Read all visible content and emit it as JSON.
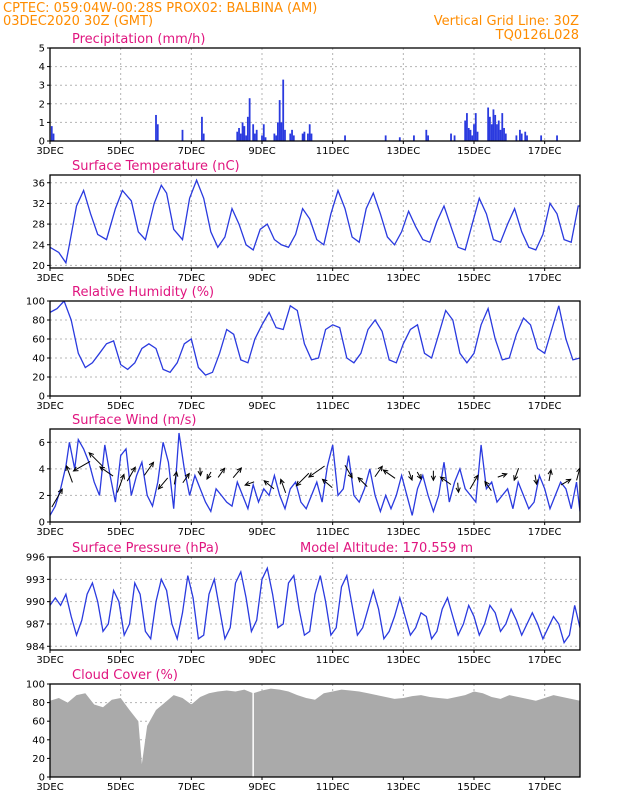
{
  "header": {
    "line1_left": "CPTEC:   059:04W-00:28S   PROX02: BALBINA (AM)",
    "line2_left": "03DEC2020 30Z (GMT)",
    "line2_right": "Vertical Grid Line: 30Z",
    "line3_right": "TQ0126L028"
  },
  "colors": {
    "header": "#ff8c00",
    "panel_title": "#e0157f",
    "series": "#2a3adf",
    "cloud_fill": "#aaaaaa",
    "grid": "#b4b4b4"
  },
  "x_axis": {
    "start_day": 3,
    "end_day": 18,
    "tick_days": [
      3,
      5,
      7,
      9,
      11,
      13,
      15,
      17
    ],
    "tick_labels": [
      "3DEC",
      "5DEC",
      "7DEC",
      "9DEC",
      "11DEC",
      "13DEC",
      "15DEC",
      "17DEC"
    ],
    "vertical_grid_day": 8.75
  },
  "chart_data": [
    {
      "type": "bar",
      "title": "Precipitation (mm/h)",
      "ylim": [
        0,
        5
      ],
      "yticks": [
        0,
        1,
        2,
        3,
        4,
        5
      ],
      "ytick_labels": [
        "0",
        "1",
        "2",
        "3",
        "4",
        "5"
      ],
      "x": [
        3.05,
        3.1,
        6.0,
        6.05,
        6.75,
        7.3,
        7.35,
        8.3,
        8.35,
        8.4,
        8.45,
        8.5,
        8.55,
        8.6,
        8.65,
        8.75,
        8.8,
        8.85,
        9.0,
        9.05,
        9.1,
        9.35,
        9.4,
        9.45,
        9.5,
        9.55,
        9.6,
        9.65,
        9.8,
        9.85,
        9.9,
        10.15,
        10.2,
        10.3,
        10.35,
        10.4,
        11.35,
        12.5,
        12.9,
        13.3,
        13.65,
        13.7,
        14.35,
        14.45,
        14.75,
        14.8,
        14.85,
        14.9,
        14.95,
        15.0,
        15.05,
        15.1,
        15.4,
        15.45,
        15.5,
        15.55,
        15.6,
        15.65,
        15.7,
        15.75,
        15.8,
        15.85,
        15.9,
        16.2,
        16.3,
        16.35,
        16.45,
        16.5,
        16.9,
        17.35
      ],
      "values": [
        0.8,
        0.4,
        1.4,
        0.9,
        0.6,
        1.3,
        0.4,
        0.5,
        0.7,
        0.4,
        1.0,
        0.8,
        0.3,
        1.3,
        2.3,
        0.9,
        0.4,
        0.6,
        0.3,
        0.9,
        0.2,
        0.4,
        0.3,
        1.0,
        2.2,
        1.0,
        3.3,
        0.6,
        0.4,
        0.6,
        0.3,
        0.4,
        0.5,
        0.4,
        0.9,
        0.4,
        0.3,
        0.3,
        0.2,
        0.3,
        0.6,
        0.3,
        0.4,
        0.3,
        1.1,
        1.5,
        0.7,
        0.6,
        0.3,
        0.9,
        1.5,
        0.5,
        1.8,
        1.3,
        0.9,
        1.7,
        1.4,
        0.9,
        1.1,
        0.6,
        1.5,
        0.7,
        0.4,
        0.3,
        0.6,
        0.4,
        0.5,
        0.3,
        0.3,
        0.3
      ]
    },
    {
      "type": "line",
      "title": "Surface Temperature (nC)",
      "ylim": [
        19.5,
        37.5
      ],
      "yticks": [
        20,
        24,
        28,
        32,
        36
      ],
      "ytick_labels": [
        "20",
        "24",
        "28",
        "32",
        "36"
      ],
      "x": [
        3.0,
        3.25,
        3.45,
        3.55,
        3.75,
        3.95,
        4.15,
        4.35,
        4.6,
        4.85,
        5.05,
        5.3,
        5.5,
        5.7,
        5.95,
        6.15,
        6.3,
        6.5,
        6.75,
        6.95,
        7.15,
        7.35,
        7.55,
        7.75,
        7.95,
        8.15,
        8.35,
        8.55,
        8.75,
        8.95,
        9.15,
        9.35,
        9.55,
        9.75,
        9.95,
        10.15,
        10.35,
        10.55,
        10.75,
        10.95,
        11.15,
        11.35,
        11.55,
        11.75,
        11.95,
        12.15,
        12.35,
        12.55,
        12.75,
        12.95,
        13.15,
        13.35,
        13.55,
        13.75,
        13.95,
        14.15,
        14.35,
        14.55,
        14.75,
        14.95,
        15.15,
        15.35,
        15.55,
        15.75,
        15.95,
        16.15,
        16.35,
        16.55,
        16.75,
        16.95,
        17.15,
        17.35,
        17.55,
        17.75,
        17.95,
        18.0
      ],
      "values": [
        23.5,
        22.5,
        20.5,
        24.0,
        31.5,
        34.5,
        30.0,
        26.0,
        25.0,
        31.0,
        34.5,
        32.5,
        26.5,
        25.0,
        32.0,
        35.5,
        34.0,
        27.0,
        25.0,
        33.0,
        36.5,
        33.0,
        26.5,
        23.5,
        25.5,
        31.0,
        28.0,
        24.0,
        23.0,
        27.0,
        28.0,
        25.0,
        24.0,
        23.5,
        26.0,
        31.0,
        29.0,
        25.0,
        24.0,
        30.0,
        34.5,
        31.0,
        25.5,
        24.5,
        31.0,
        34.0,
        30.0,
        25.5,
        24.0,
        26.5,
        30.5,
        27.5,
        25.0,
        24.5,
        28.5,
        31.5,
        27.5,
        23.5,
        23.0,
        28.0,
        33.0,
        30.0,
        25.0,
        24.5,
        28.0,
        31.0,
        26.5,
        23.5,
        23.0,
        26.0,
        32.0,
        30.0,
        25.0,
        24.5,
        31.5,
        31.5
      ]
    },
    {
      "type": "line",
      "title": "Relative Humidity (%)",
      "ylim": [
        0,
        100
      ],
      "yticks": [
        0,
        20,
        40,
        60,
        80,
        100
      ],
      "ytick_labels": [
        "0",
        "20",
        "40",
        "60",
        "80",
        "100"
      ],
      "x": [
        3.0,
        3.2,
        3.4,
        3.6,
        3.8,
        4.0,
        4.2,
        4.4,
        4.6,
        4.8,
        5.0,
        5.2,
        5.4,
        5.6,
        5.8,
        6.0,
        6.2,
        6.4,
        6.6,
        6.8,
        7.0,
        7.2,
        7.4,
        7.6,
        7.8,
        8.0,
        8.2,
        8.4,
        8.6,
        8.8,
        9.0,
        9.2,
        9.4,
        9.6,
        9.8,
        10.0,
        10.2,
        10.4,
        10.6,
        10.8,
        11.0,
        11.2,
        11.4,
        11.6,
        11.8,
        12.0,
        12.2,
        12.4,
        12.6,
        12.8,
        13.0,
        13.2,
        13.4,
        13.6,
        13.8,
        14.0,
        14.2,
        14.4,
        14.6,
        14.8,
        15.0,
        15.2,
        15.4,
        15.6,
        15.8,
        16.0,
        16.2,
        16.4,
        16.6,
        16.8,
        17.0,
        17.2,
        17.4,
        17.6,
        17.8,
        18.0
      ],
      "values": [
        88,
        92,
        100,
        80,
        45,
        30,
        35,
        45,
        55,
        58,
        33,
        28,
        35,
        50,
        55,
        50,
        28,
        25,
        35,
        55,
        60,
        30,
        22,
        25,
        45,
        70,
        65,
        38,
        35,
        60,
        75,
        88,
        72,
        70,
        95,
        90,
        55,
        38,
        40,
        70,
        75,
        72,
        40,
        35,
        45,
        70,
        80,
        68,
        38,
        35,
        55,
        70,
        75,
        45,
        40,
        65,
        90,
        80,
        45,
        35,
        45,
        75,
        92,
        60,
        38,
        40,
        65,
        82,
        75,
        50,
        45,
        70,
        95,
        60,
        38,
        40
      ]
    },
    {
      "type": "line",
      "title": "Surface Wind (m/s)",
      "ylim": [
        0,
        7
      ],
      "yticks": [
        0,
        2,
        4,
        6
      ],
      "ytick_labels": [
        "0",
        "2",
        "4",
        "6"
      ],
      "x": [
        3.0,
        3.15,
        3.3,
        3.45,
        3.55,
        3.7,
        3.8,
        3.95,
        4.1,
        4.25,
        4.4,
        4.55,
        4.7,
        4.85,
        5.0,
        5.15,
        5.3,
        5.45,
        5.6,
        5.75,
        5.9,
        6.05,
        6.2,
        6.35,
        6.5,
        6.65,
        6.8,
        6.95,
        7.1,
        7.25,
        7.4,
        7.55,
        7.7,
        7.85,
        8.0,
        8.15,
        8.3,
        8.45,
        8.6,
        8.75,
        8.9,
        9.05,
        9.2,
        9.35,
        9.5,
        9.65,
        9.8,
        9.95,
        10.1,
        10.25,
        10.4,
        10.55,
        10.7,
        10.85,
        11.0,
        11.15,
        11.3,
        11.45,
        11.6,
        11.75,
        11.9,
        12.05,
        12.2,
        12.35,
        12.5,
        12.65,
        12.8,
        12.95,
        13.1,
        13.25,
        13.4,
        13.55,
        13.7,
        13.85,
        14.0,
        14.15,
        14.3,
        14.45,
        14.6,
        14.75,
        14.9,
        15.05,
        15.2,
        15.35,
        15.5,
        15.65,
        15.8,
        15.95,
        16.1,
        16.25,
        16.4,
        16.55,
        16.7,
        16.85,
        17.0,
        17.15,
        17.3,
        17.45,
        17.6,
        17.75,
        17.9,
        18.0
      ],
      "values": [
        0.5,
        1.2,
        2.5,
        4.2,
        6.0,
        4.0,
        6.2,
        5.5,
        4.5,
        3.0,
        2.0,
        5.8,
        3.5,
        1.5,
        5.0,
        5.5,
        2.0,
        3.5,
        4.5,
        2.0,
        1.2,
        3.0,
        6.0,
        4.5,
        1.0,
        6.7,
        4.0,
        2.0,
        3.5,
        2.5,
        1.5,
        0.8,
        2.5,
        2.0,
        1.5,
        1.2,
        3.0,
        2.0,
        1.0,
        2.8,
        1.5,
        2.5,
        2.0,
        3.5,
        2.0,
        1.0,
        2.5,
        3.0,
        1.5,
        1.0,
        2.0,
        3.0,
        1.5,
        4.2,
        5.8,
        2.0,
        2.5,
        5.0,
        2.0,
        1.5,
        2.5,
        4.0,
        2.0,
        0.8,
        2.0,
        1.0,
        2.0,
        3.5,
        2.0,
        0.5,
        2.5,
        3.5,
        2.0,
        0.8,
        2.0,
        4.5,
        1.5,
        3.0,
        4.0,
        2.5,
        2.0,
        1.5,
        5.8,
        2.5,
        3.0,
        1.5,
        2.0,
        2.5,
        1.0,
        3.0,
        2.0,
        1.0,
        1.5,
        3.5,
        2.5,
        1.0,
        2.0,
        3.0,
        2.5,
        1.0,
        3.0,
        0.8
      ]
    },
    {
      "type": "line",
      "title": "Surface Pressure (hPa)",
      "subtitle": "Model Altitude: 170.559 m",
      "ylim": [
        983.5,
        996
      ],
      "yticks": [
        984,
        987,
        990,
        993,
        996
      ],
      "ytick_labels": [
        "984",
        "987",
        "990",
        "993",
        "996"
      ],
      "x": [
        3.0,
        3.15,
        3.3,
        3.45,
        3.6,
        3.75,
        3.9,
        4.05,
        4.2,
        4.35,
        4.5,
        4.65,
        4.8,
        4.95,
        5.1,
        5.25,
        5.4,
        5.55,
        5.7,
        5.85,
        6.0,
        6.15,
        6.3,
        6.45,
        6.6,
        6.75,
        6.9,
        7.05,
        7.2,
        7.35,
        7.5,
        7.65,
        7.8,
        7.95,
        8.1,
        8.25,
        8.4,
        8.55,
        8.7,
        8.85,
        9.0,
        9.15,
        9.3,
        9.45,
        9.6,
        9.75,
        9.9,
        10.05,
        10.2,
        10.35,
        10.5,
        10.65,
        10.8,
        10.95,
        11.1,
        11.25,
        11.4,
        11.55,
        11.7,
        11.85,
        12.0,
        12.15,
        12.3,
        12.45,
        12.6,
        12.75,
        12.9,
        13.05,
        13.2,
        13.35,
        13.5,
        13.65,
        13.8,
        13.95,
        14.1,
        14.25,
        14.4,
        14.55,
        14.7,
        14.85,
        15.0,
        15.15,
        15.3,
        15.45,
        15.6,
        15.75,
        15.9,
        16.05,
        16.2,
        16.35,
        16.5,
        16.65,
        16.8,
        16.95,
        17.1,
        17.25,
        17.4,
        17.55,
        17.7,
        17.85,
        18.0
      ],
      "values": [
        989.5,
        990.5,
        989.5,
        991.0,
        988.0,
        985.5,
        987.5,
        991.0,
        992.5,
        990.0,
        986.0,
        987.0,
        991.5,
        990.0,
        985.5,
        987.0,
        992.5,
        991.0,
        986.0,
        985.0,
        990.0,
        993.0,
        991.5,
        987.0,
        985.0,
        988.5,
        993.5,
        990.5,
        985.0,
        985.5,
        991.0,
        993.0,
        989.0,
        985.0,
        986.5,
        992.5,
        994.0,
        990.5,
        986.0,
        987.5,
        993.0,
        994.5,
        991.0,
        986.5,
        987.0,
        992.5,
        993.5,
        989.0,
        985.5,
        986.0,
        991.0,
        993.5,
        990.0,
        985.5,
        986.5,
        992.0,
        993.5,
        989.5,
        985.5,
        986.5,
        989.0,
        991.5,
        989.0,
        985.0,
        986.0,
        988.0,
        990.5,
        988.0,
        985.5,
        986.5,
        988.5,
        988.0,
        985.0,
        986.0,
        989.0,
        990.5,
        988.0,
        985.5,
        987.0,
        989.5,
        988.0,
        985.5,
        987.0,
        989.5,
        988.5,
        986.0,
        987.0,
        989.0,
        987.5,
        985.5,
        987.0,
        988.5,
        987.0,
        985.0,
        986.5,
        988.0,
        987.0,
        984.5,
        985.5,
        989.5,
        986.5
      ]
    },
    {
      "type": "area",
      "title": "Cloud Cover (%)",
      "ylim": [
        0,
        100
      ],
      "yticks": [
        0,
        20,
        40,
        60,
        80,
        100
      ],
      "ytick_labels": [
        "0",
        "20",
        "40",
        "60",
        "80",
        "100"
      ],
      "x": [
        3.0,
        3.25,
        3.5,
        3.75,
        4.0,
        4.25,
        4.5,
        4.75,
        5.0,
        5.25,
        5.5,
        5.6,
        5.75,
        6.0,
        6.25,
        6.5,
        6.75,
        7.0,
        7.25,
        7.5,
        7.75,
        8.0,
        8.25,
        8.5,
        8.75,
        9.0,
        9.25,
        9.5,
        9.75,
        10.0,
        10.25,
        10.5,
        10.75,
        11.0,
        11.25,
        11.5,
        11.75,
        12.0,
        12.25,
        12.5,
        12.75,
        13.0,
        13.25,
        13.5,
        13.75,
        14.0,
        14.25,
        14.5,
        14.75,
        15.0,
        15.25,
        15.5,
        15.75,
        16.0,
        16.25,
        16.5,
        16.75,
        17.0,
        17.25,
        17.5,
        17.75,
        18.0
      ],
      "values": [
        82,
        85,
        80,
        88,
        90,
        78,
        75,
        83,
        85,
        72,
        60,
        14,
        55,
        72,
        80,
        88,
        85,
        78,
        86,
        90,
        92,
        93,
        92,
        94,
        90,
        93,
        95,
        94,
        92,
        88,
        85,
        83,
        90,
        92,
        94,
        93,
        92,
        90,
        88,
        86,
        84,
        85,
        87,
        88,
        86,
        85,
        84,
        86,
        88,
        92,
        90,
        86,
        84,
        88,
        86,
        84,
        82,
        85,
        88,
        86,
        84,
        82
      ]
    }
  ],
  "wind_arrows": {
    "x": [
      3.2,
      3.55,
      3.9,
      4.3,
      4.6,
      5.0,
      5.3,
      5.8,
      6.2,
      6.55,
      6.85,
      7.25,
      7.5,
      7.85,
      8.3,
      8.65,
      9.2,
      9.6,
      10.15,
      10.55,
      10.85,
      11.45,
      11.85,
      12.3,
      12.6,
      13.2,
      13.45,
      13.85,
      14.2,
      14.55,
      15.0,
      15.4,
      15.8,
      16.2,
      16.75,
      17.15,
      17.6,
      17.95
    ],
    "y": [
      1.8,
      3.6,
      4.2,
      4.7,
      3.8,
      2.9,
      3.6,
      4.0,
      2.9,
      3.3,
      3.3,
      3.8,
      3.5,
      3.7,
      3.7,
      2.9,
      2.8,
      2.7,
      3.2,
      3.8,
      2.9,
      3.8,
      3.0,
      3.8,
      3.6,
      3.5,
      3.5,
      3.5,
      3.1,
      2.6,
      3.0,
      2.7,
      3.5,
      3.6,
      3.2,
      3.5,
      3.0,
      3.6
    ],
    "deg": [
      -60,
      -110,
      150,
      -135,
      -145,
      -70,
      -60,
      -55,
      130,
      -80,
      -55,
      85,
      120,
      -55,
      -50,
      160,
      -140,
      -110,
      135,
      145,
      -140,
      60,
      -135,
      -55,
      -145,
      70,
      60,
      90,
      -145,
      85,
      -60,
      -125,
      -20,
      110,
      80,
      -80,
      -30,
      -75
    ],
    "len": [
      1.3,
      1.1,
      1.2,
      1.2,
      1.0,
      1.2,
      1.0,
      1.0,
      0.9,
      0.8,
      0.7,
      0.5,
      0.5,
      0.7,
      0.8,
      0.6,
      0.8,
      0.9,
      1.1,
      1.2,
      0.8,
      0.9,
      0.8,
      0.8,
      0.9,
      0.6,
      0.5,
      0.6,
      0.8,
      0.6,
      1.0,
      0.7,
      0.6,
      0.8,
      0.6,
      0.7,
      0.7,
      0.8
    ]
  }
}
